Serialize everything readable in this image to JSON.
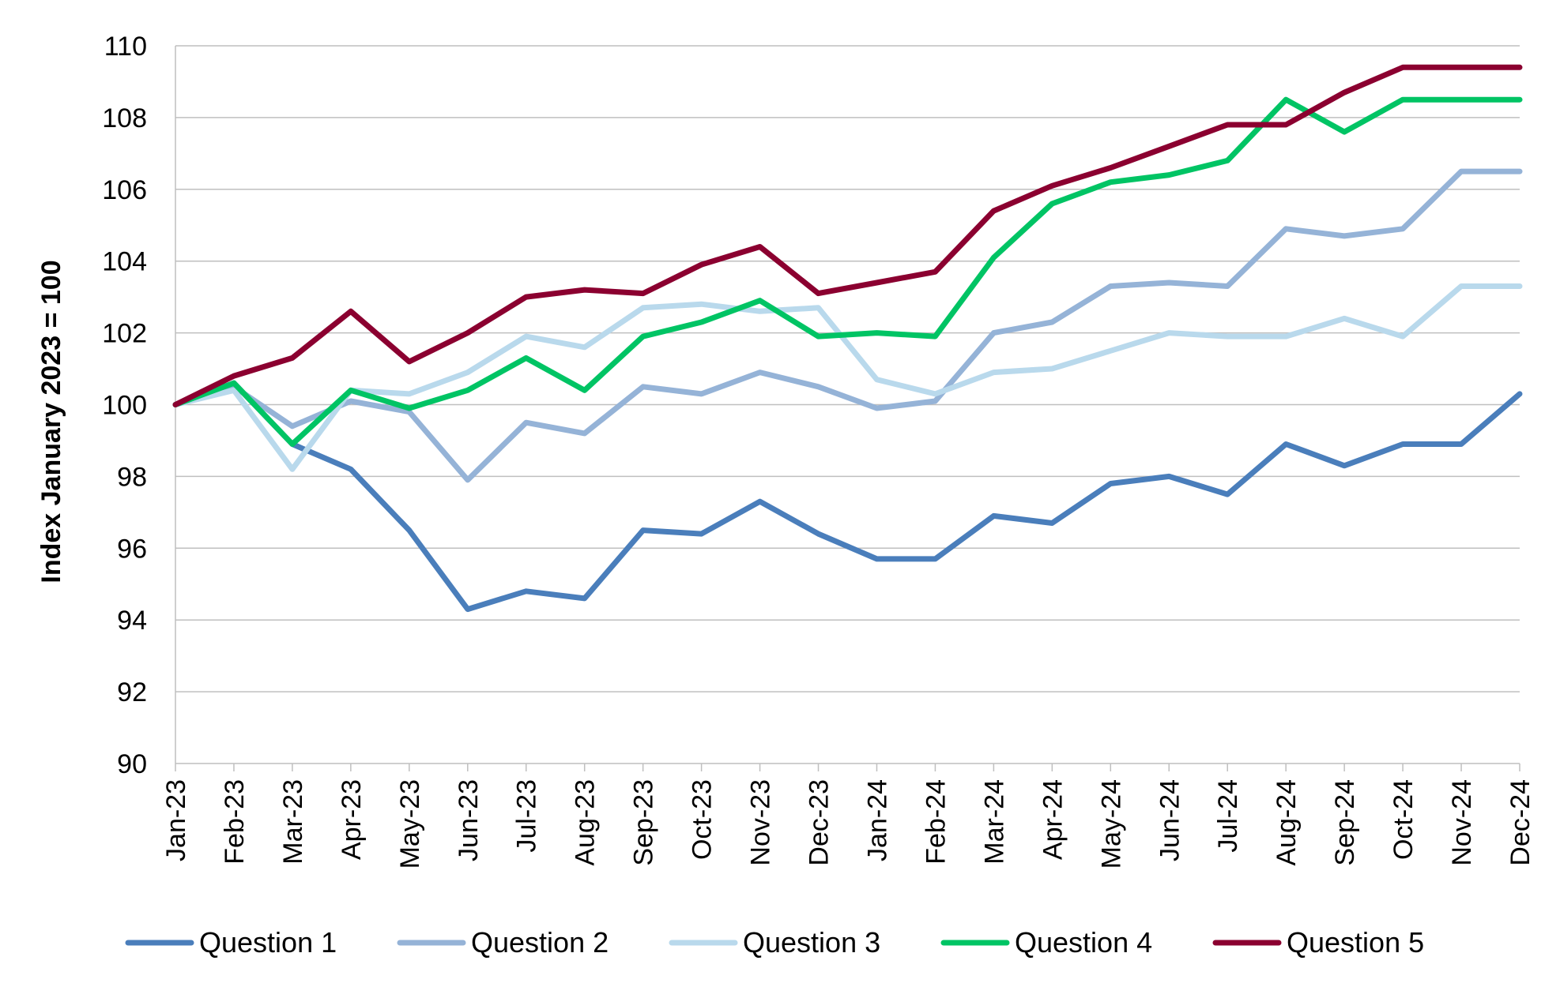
{
  "chart_data": {
    "type": "line",
    "title": "",
    "xlabel": "",
    "ylabel": "Index January 2023 = 100",
    "ylim": [
      90,
      110
    ],
    "yticks": [
      90,
      92,
      94,
      96,
      98,
      100,
      102,
      104,
      106,
      108,
      110
    ],
    "grid": "horizontal",
    "legend_position": "bottom",
    "categories": [
      "Jan-23",
      "Feb-23",
      "Mar-23",
      "Apr-23",
      "May-23",
      "Jun-23",
      "Jul-23",
      "Aug-23",
      "Sep-23",
      "Oct-23",
      "Nov-23",
      "Dec-23",
      "Jan-24",
      "Feb-24",
      "Mar-24",
      "Apr-24",
      "May-24",
      "Jun-24",
      "Jul-24",
      "Aug-24",
      "Sep-24",
      "Oct-24",
      "Nov-24",
      "Dec-24"
    ],
    "series": [
      {
        "name": "Question 1",
        "color": "#4a7ebb",
        "values": [
          100,
          100.6,
          98.9,
          98.2,
          96.5,
          94.3,
          94.8,
          94.6,
          96.5,
          96.4,
          97.3,
          96.4,
          95.7,
          95.7,
          96.9,
          96.7,
          97.8,
          98.0,
          97.5,
          98.9,
          98.3,
          98.9,
          98.9,
          100.3
        ]
      },
      {
        "name": "Question 2",
        "color": "#95b3d7",
        "values": [
          100,
          100.5,
          99.4,
          100.1,
          99.8,
          97.9,
          99.5,
          99.2,
          100.5,
          100.3,
          100.9,
          100.5,
          99.9,
          100.1,
          102.0,
          102.3,
          103.3,
          103.4,
          103.3,
          104.9,
          104.7,
          104.9,
          106.5,
          106.5
        ]
      },
      {
        "name": "Question 3",
        "color": "#b9d9ec",
        "values": [
          100,
          100.4,
          98.2,
          100.4,
          100.3,
          100.9,
          101.9,
          101.6,
          102.7,
          102.8,
          102.6,
          102.7,
          100.7,
          100.3,
          100.9,
          101.0,
          101.5,
          102.0,
          101.9,
          101.9,
          102.4,
          101.9,
          103.3,
          103.3
        ]
      },
      {
        "name": "Question 4",
        "color": "#00c464",
        "values": [
          100,
          100.6,
          98.9,
          100.4,
          99.9,
          100.4,
          101.3,
          100.4,
          101.9,
          102.3,
          102.9,
          101.9,
          102.0,
          101.9,
          104.1,
          105.6,
          106.2,
          106.4,
          106.8,
          108.5,
          107.6,
          108.5,
          108.5,
          108.5
        ]
      },
      {
        "name": "Question 5",
        "color": "#8b0030",
        "values": [
          100,
          100.8,
          101.3,
          102.6,
          101.2,
          102.0,
          103.0,
          103.2,
          103.1,
          103.9,
          104.4,
          103.1,
          103.4,
          103.7,
          105.4,
          106.1,
          106.6,
          107.2,
          107.8,
          107.8,
          108.7,
          109.4,
          109.4,
          109.4
        ]
      }
    ]
  }
}
